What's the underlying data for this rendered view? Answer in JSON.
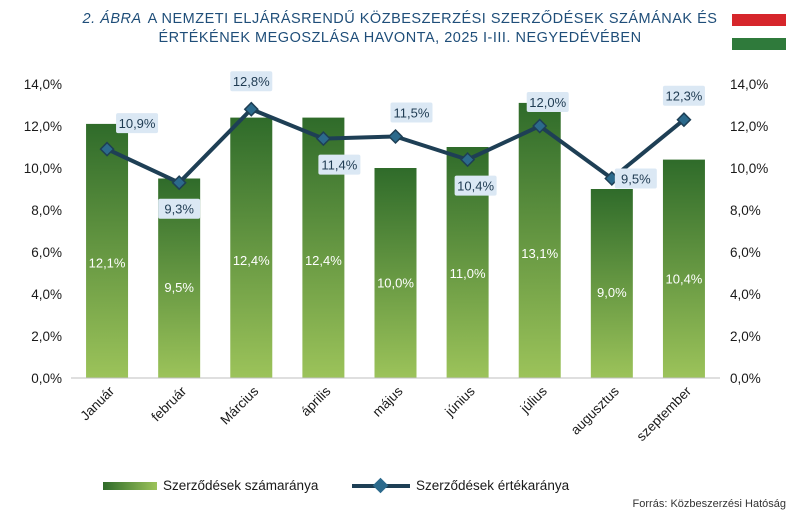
{
  "header": {
    "prefix": "2. ÁBRA",
    "title_line1": "A NEMZETI ELJÁRÁSRENDŰ KÖZBESZERZÉSI SZERZŐDÉSEK SZÁMÁNAK ÉS",
    "title_line2": "ÉRTÉKÉNEK MEGOSZLÁSA HAVONTA, 2025 I-III. NEGYEDÉVÉBEN"
  },
  "flag": {
    "colors": [
      "#d6262b",
      "#ffffff",
      "#2f7a3b"
    ]
  },
  "legend": {
    "bar_label": "Szerződések számaránya",
    "line_label": "Szerződések értékaránya"
  },
  "source": "Forrás: Közbeszerzési Hatóság",
  "colors": {
    "bar_top": "#2f6b2a",
    "bar_bottom": "#9cc35a",
    "line": "#1e3f55",
    "marker": "#2c6a8c",
    "label_bg": "#dbe8f4"
  },
  "chart_data": {
    "type": "bar",
    "categories": [
      "Január",
      "február",
      "Március",
      "április",
      "május",
      "június",
      "július",
      "augusztus",
      "szeptember"
    ],
    "series": [
      {
        "name": "Szerződések számaránya",
        "type": "bar",
        "values": [
          12.1,
          9.5,
          12.4,
          12.4,
          10.0,
          11.0,
          13.1,
          9.0,
          10.4
        ],
        "labels": [
          "12,1%",
          "9,5%",
          "12,4%",
          "12,4%",
          "10,0%",
          "11,0%",
          "13,1%",
          "9,0%",
          "10,4%"
        ]
      },
      {
        "name": "Szerződések értékaránya",
        "type": "line",
        "values": [
          10.9,
          9.3,
          12.8,
          11.4,
          11.5,
          10.4,
          12.0,
          9.5,
          12.3
        ],
        "labels": [
          "10,9%",
          "9,3%",
          "12,8%",
          "11,4%",
          "11,5%",
          "10,4%",
          "12,0%",
          "9,5%",
          "12,3%"
        ]
      }
    ],
    "ylim": [
      0,
      14
    ],
    "y_ticks": [
      "0,0%",
      "2,0%",
      "4,0%",
      "6,0%",
      "8,0%",
      "10,0%",
      "12,0%",
      "14,0%"
    ],
    "y_tick_values": [
      0,
      2,
      4,
      6,
      8,
      10,
      12,
      14
    ],
    "secondary_axis": true,
    "grid": false,
    "legend_position": "bottom"
  }
}
